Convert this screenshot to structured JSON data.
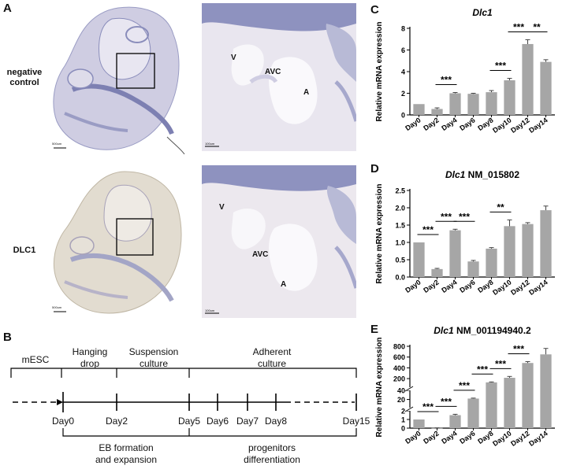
{
  "panels": {
    "A": {
      "letter": "A",
      "row1_label": "negative\ncontrol",
      "row2_label": "DLC1",
      "scale_bar_1": "500um",
      "scale_bar_2": "100um",
      "regions_top": {
        "v": "V",
        "avc": "AVC",
        "a": "A"
      },
      "regions_bottom": {
        "v": "V",
        "avc": "AVC",
        "a": "A"
      }
    },
    "B": {
      "letter": "B",
      "stages": [
        "mESC",
        "Hanging\ndrop",
        "Suspension\nculture",
        "Adherent\nculture"
      ],
      "days": [
        "Day0",
        "Day2",
        "Day5",
        "Day6",
        "Day7",
        "Day8",
        "Day15"
      ],
      "phases": [
        "EB formation\nand expansion",
        "progenitors\ndifferentiation"
      ]
    },
    "C": {
      "letter": "C"
    },
    "D": {
      "letter": "D"
    },
    "E": {
      "letter": "E"
    }
  },
  "colors": {
    "bar": "#a6a6a6",
    "axis": "#000000",
    "tissue": "#c9c6de",
    "tissue_dark": "#7d80b2",
    "histo_bg": "#e9e6ef"
  },
  "chart_data": [
    {
      "id": "C",
      "type": "bar",
      "title": "Dlc1",
      "title_italic": "Dlc1",
      "title_plain": "",
      "ylabel": "Relative mRNA expression",
      "categories": [
        "Day0",
        "Day2",
        "Day4",
        "Day6",
        "Day8",
        "Day10",
        "Day12",
        "Day14"
      ],
      "values": [
        1.0,
        0.55,
        2.0,
        1.95,
        2.1,
        3.2,
        6.55,
        4.9
      ],
      "errors": [
        0.0,
        0.1,
        0.07,
        0.05,
        0.15,
        0.18,
        0.4,
        0.2
      ],
      "ylim": [
        0,
        8
      ],
      "yticks": [
        0,
        2,
        4,
        6,
        8
      ],
      "significance": [
        {
          "from": "Day2",
          "to": "Day4",
          "label": "***"
        },
        {
          "from": "Day8",
          "to": "Day10",
          "label": "***"
        },
        {
          "from": "Day10",
          "to": "Day12",
          "label": "***"
        },
        {
          "from": "Day12",
          "to": "Day14",
          "label": "**"
        }
      ]
    },
    {
      "id": "D",
      "type": "bar",
      "title": "Dlc1 NM_015802",
      "title_italic": "Dlc1",
      "title_plain": " NM_015802",
      "ylabel": "Relative mRNA expression",
      "categories": [
        "Day0",
        "Day2",
        "Day4",
        "Day6",
        "Day8",
        "Day10",
        "Day12",
        "Day14"
      ],
      "values": [
        1.0,
        0.23,
        1.35,
        0.45,
        0.82,
        1.47,
        1.53,
        1.93
      ],
      "errors": [
        0.0,
        0.02,
        0.03,
        0.03,
        0.03,
        0.18,
        0.04,
        0.12
      ],
      "ylim": [
        0,
        2.5
      ],
      "yticks": [
        0.0,
        0.5,
        1.0,
        1.5,
        2.0,
        2.5
      ],
      "significance": [
        {
          "from": "Day0",
          "to": "Day2",
          "label": "***"
        },
        {
          "from": "Day2",
          "to": "Day4",
          "label": "***"
        },
        {
          "from": "Day4",
          "to": "Day6",
          "label": "***"
        },
        {
          "from": "Day8",
          "to": "Day10",
          "label": "**"
        }
      ]
    },
    {
      "id": "E",
      "type": "bar",
      "title": "Dlc1 NM_001194940.2",
      "title_italic": "Dlc1",
      "title_plain": " NM_001194940.2",
      "ylabel": "Relative mRNA expression",
      "categories": [
        "Day0",
        "Day2",
        "Day4",
        "Day6",
        "Day8",
        "Day10",
        "Day12",
        "Day14"
      ],
      "values": [
        1.0,
        0.02,
        1.5,
        22,
        130,
        215,
        490,
        650
      ],
      "errors": [
        0.0,
        0.01,
        0.1,
        1,
        8,
        25,
        25,
        110
      ],
      "ylim": [
        0,
        800
      ],
      "yticks": [
        0,
        1,
        2,
        20,
        40,
        200,
        400,
        600,
        800
      ],
      "axis_breaks": true,
      "significance": [
        {
          "from": "Day0",
          "to": "Day2",
          "label": "***"
        },
        {
          "from": "Day2",
          "to": "Day4",
          "label": "***"
        },
        {
          "from": "Day4",
          "to": "Day6",
          "label": "***"
        },
        {
          "from": "Day6",
          "to": "Day8",
          "label": "***"
        },
        {
          "from": "Day8",
          "to": "Day10",
          "label": "***"
        },
        {
          "from": "Day10",
          "to": "Day12",
          "label": "***"
        }
      ]
    }
  ]
}
